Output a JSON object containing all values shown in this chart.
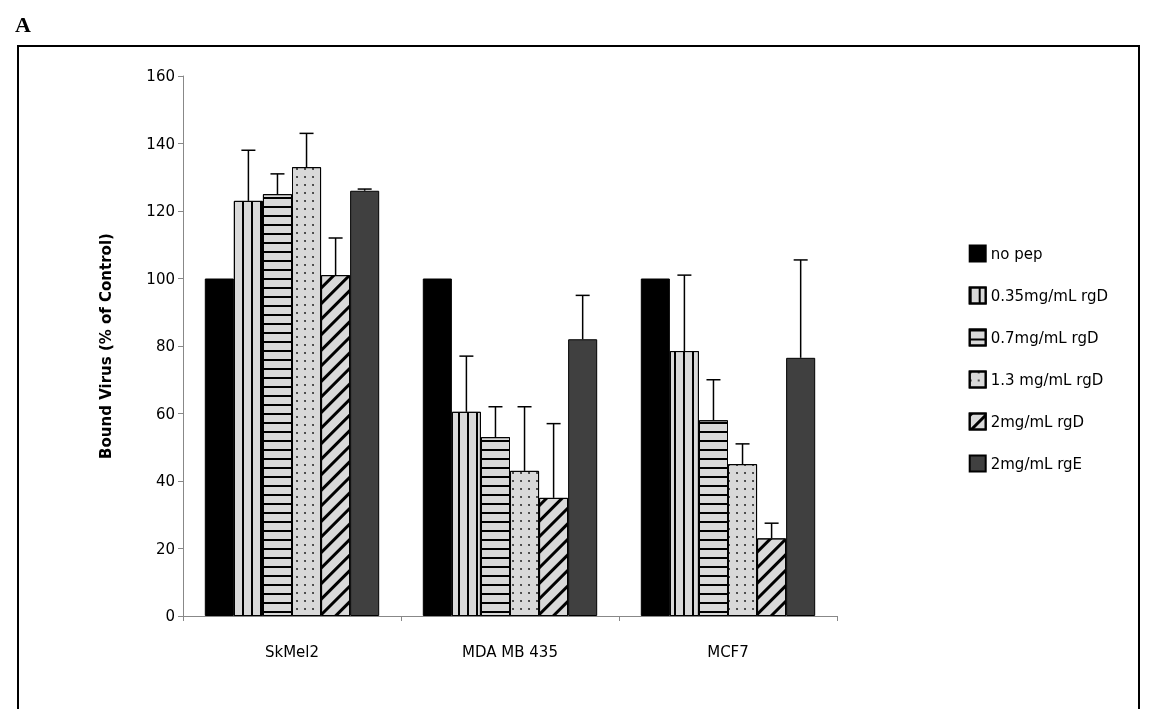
{
  "chart_data": {
    "type": "bar",
    "title": "A",
    "ylabel": "Bound Virus (% of Control)",
    "categories": [
      "SkMel2",
      "MDA MB 435",
      "MCF7"
    ],
    "series": [
      {
        "name": "no pep",
        "color": "#000000",
        "values": [
          100,
          100,
          100
        ]
      },
      {
        "name": "0.35mg/mL rgD",
        "color": "#d9d9d9",
        "values": [
          123,
          60.5,
          78.5
        ],
        "errors": [
          [
            123,
            138
          ],
          [
            60.5,
            77
          ],
          [
            78.5,
            101
          ]
        ]
      },
      {
        "name": "0.7mg/mL rgD",
        "color": "#d9d9d9",
        "values": [
          125,
          53,
          58
        ],
        "errors": [
          [
            125,
            131
          ],
          [
            53,
            62
          ],
          [
            58,
            70
          ]
        ]
      },
      {
        "name": "1.3 mg/mL rgD",
        "color": "#d9d9d9",
        "values": [
          133,
          43,
          45
        ],
        "errors": [
          [
            133,
            143
          ],
          [
            43,
            62
          ],
          [
            45,
            51
          ]
        ]
      },
      {
        "name": "2mg/mL rgD",
        "color": "#d9d9d9",
        "values": [
          101,
          35,
          23
        ],
        "errors": [
          [
            101,
            112
          ],
          [
            35,
            57
          ],
          [
            23,
            27.5
          ]
        ]
      },
      {
        "name": "2mg/mL rgE",
        "color": "#404040",
        "values": [
          126,
          82,
          76.5
        ],
        "errors": [
          [
            126,
            126.5
          ],
          [
            82,
            95
          ],
          [
            76.5,
            105.5
          ]
        ]
      }
    ],
    "ylim": [
      0,
      160
    ],
    "yticks": [
      0,
      20,
      40,
      60,
      80,
      100,
      120,
      140,
      160
    ],
    "grid": false,
    "legend": "right"
  }
}
